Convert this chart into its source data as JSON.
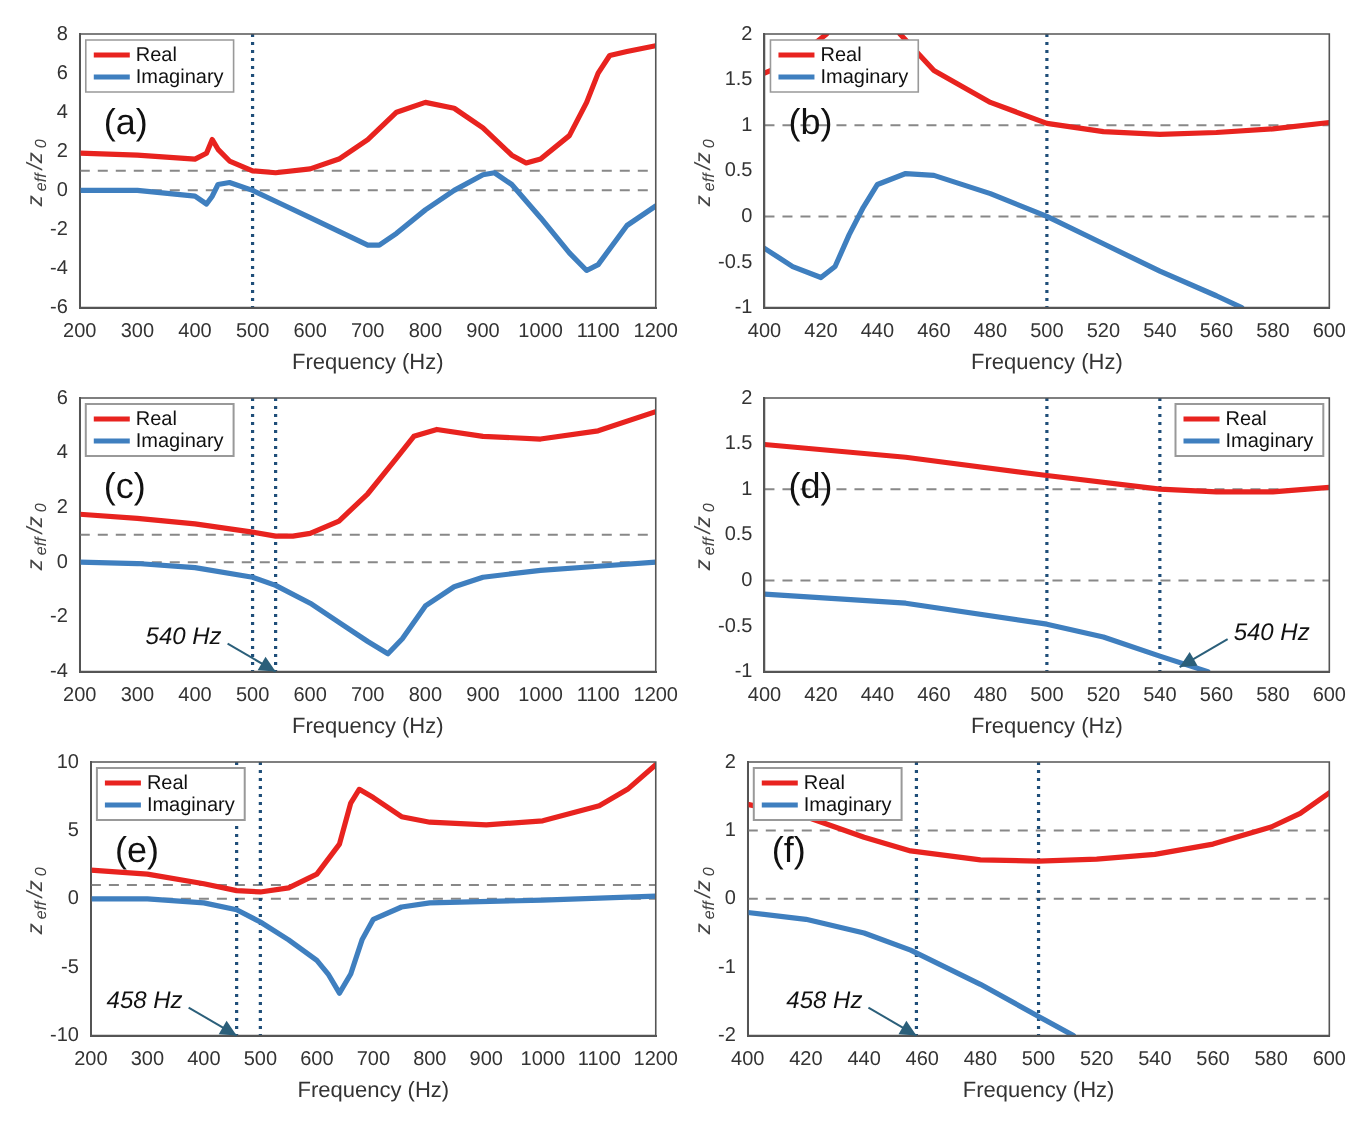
{
  "chart_data": [
    {
      "type": "line",
      "xlabel": "Frequency (Hz)",
      "ylabel": "z$_{eff}$/z$_{0}$",
      "xlim": [
        200,
        1200
      ],
      "xticks": [
        200,
        300,
        400,
        500,
        600,
        700,
        800,
        900,
        1000,
        1100,
        1200
      ],
      "ylim": [
        -6,
        8
      ],
      "yticks": [
        -6,
        -4,
        -2,
        0,
        2,
        4,
        6,
        8
      ],
      "legend": "top left",
      "line_style": "solid",
      "marker": "none",
      "series": [
        {
          "name": "Real",
          "color": "#e8231f",
          "x": [
            200,
            300,
            400,
            420,
            430,
            440,
            460,
            500,
            540,
            600,
            650,
            700,
            750,
            800,
            850,
            900,
            950,
            975,
            1000,
            1050,
            1080,
            1100,
            1120,
            1150,
            1200
          ],
          "values": [
            1.9,
            1.8,
            1.6,
            1.9,
            2.6,
            2.1,
            1.5,
            1.0,
            0.9,
            1.1,
            1.6,
            2.6,
            4.0,
            4.5,
            4.2,
            3.2,
            1.8,
            1.4,
            1.6,
            2.8,
            4.5,
            6.0,
            6.9,
            7.1,
            7.4
          ]
        },
        {
          "name": "Imaginary",
          "color": "#3f7fbf",
          "x": [
            200,
            300,
            400,
            420,
            430,
            440,
            460,
            500,
            550,
            600,
            650,
            700,
            720,
            750,
            800,
            850,
            900,
            920,
            950,
            1000,
            1050,
            1080,
            1100,
            1150,
            1200
          ],
          "values": [
            0,
            0,
            -0.3,
            -0.7,
            -0.3,
            0.3,
            0.4,
            0,
            -0.7,
            -1.4,
            -2.1,
            -2.8,
            -2.8,
            -2.2,
            -1.0,
            0,
            0.8,
            0.9,
            0.3,
            -1.4,
            -3.2,
            -4.1,
            -3.8,
            -1.8,
            -0.8
          ]
        }
      ],
      "ref_lines": [
        {
          "axis": "y",
          "value": 1,
          "color": "#888888",
          "line_style": "dashed"
        },
        {
          "axis": "y",
          "value": 0,
          "color": "#888888",
          "line_style": "dashed"
        },
        {
          "axis": "x",
          "value": 500,
          "color": "#1f4e79",
          "line_style": "dotted"
        }
      ],
      "annotations": [
        "(a)"
      ]
    },
    {
      "type": "line",
      "xlabel": "Frequency (Hz)",
      "ylabel": "z$_{eff}$/z$_{0}$",
      "xlim": [
        400,
        600
      ],
      "xticks": [
        400,
        420,
        440,
        460,
        480,
        500,
        520,
        540,
        560,
        580,
        600
      ],
      "ylim": [
        -1,
        2
      ],
      "yticks": [
        -1,
        -0.5,
        0,
        0.5,
        1,
        1.5,
        2
      ],
      "legend": "top left",
      "line_style": "solid",
      "marker": "none",
      "series": [
        {
          "name": "Real",
          "color": "#e8231f",
          "x": [
            400,
            410,
            420,
            422,
            435,
            448,
            460,
            480,
            500,
            520,
            540,
            560,
            580,
            600
          ],
          "values": [
            1.57,
            1.7,
            1.95,
            2.0,
            null,
            2.0,
            1.6,
            1.25,
            1.02,
            0.93,
            0.9,
            0.92,
            0.96,
            1.03
          ]
        },
        {
          "name": "Imaginary",
          "color": "#3f7fbf",
          "x": [
            400,
            410,
            420,
            425,
            430,
            435,
            440,
            450,
            460,
            480,
            500,
            520,
            540,
            560,
            569
          ],
          "values": [
            -0.35,
            -0.55,
            -0.67,
            -0.55,
            -0.2,
            0.1,
            0.35,
            0.47,
            0.45,
            0.25,
            0,
            -0.3,
            -0.6,
            -0.87,
            -1.0
          ]
        }
      ],
      "ref_lines": [
        {
          "axis": "y",
          "value": 1,
          "color": "#888888",
          "line_style": "dashed"
        },
        {
          "axis": "y",
          "value": 0,
          "color": "#888888",
          "line_style": "dashed"
        },
        {
          "axis": "x",
          "value": 500,
          "color": "#1f4e79",
          "line_style": "dotted"
        }
      ],
      "annotations": [
        "(b)"
      ]
    },
    {
      "type": "line",
      "xlabel": "Frequency (Hz)",
      "ylabel": "z$_{eff}$/z$_{0}$",
      "xlim": [
        200,
        1200
      ],
      "xticks": [
        200,
        300,
        400,
        500,
        600,
        700,
        800,
        900,
        1000,
        1100,
        1200
      ],
      "ylim": [
        -4,
        6
      ],
      "yticks": [
        -4,
        -2,
        0,
        2,
        4,
        6
      ],
      "legend": "top left",
      "line_style": "solid",
      "marker": "none",
      "series": [
        {
          "name": "Real",
          "color": "#e8231f",
          "x": [
            200,
            300,
            400,
            500,
            540,
            570,
            600,
            650,
            700,
            750,
            780,
            820,
            900,
            1000,
            1100,
            1200
          ],
          "values": [
            1.75,
            1.6,
            1.4,
            1.1,
            0.95,
            0.95,
            1.05,
            1.5,
            2.5,
            3.8,
            4.6,
            4.85,
            4.6,
            4.5,
            4.8,
            5.5
          ]
        },
        {
          "name": "Imaginary",
          "color": "#3f7fbf",
          "x": [
            200,
            300,
            400,
            500,
            540,
            600,
            650,
            700,
            735,
            760,
            800,
            850,
            900,
            1000,
            1100,
            1200
          ],
          "values": [
            0,
            -0.05,
            -0.2,
            -0.55,
            -0.85,
            -1.5,
            -2.2,
            -2.9,
            -3.35,
            -2.8,
            -1.6,
            -0.9,
            -0.55,
            -0.3,
            -0.15,
            0
          ]
        }
      ],
      "ref_lines": [
        {
          "axis": "y",
          "value": 1,
          "color": "#888888",
          "line_style": "dashed"
        },
        {
          "axis": "y",
          "value": 0,
          "color": "#888888",
          "line_style": "dashed"
        },
        {
          "axis": "x",
          "value": 500,
          "color": "#1f4e79",
          "line_style": "dotted"
        },
        {
          "axis": "x",
          "value": 540,
          "color": "#1f4e79",
          "line_style": "dotted"
        }
      ],
      "annotations": [
        "(c)",
        {
          "text": "540 Hz",
          "x": 540,
          "y": -4
        }
      ]
    },
    {
      "type": "line",
      "xlabel": "Frequency (Hz)",
      "ylabel": "z$_{eff}$/z$_{0}$",
      "xlim": [
        400,
        600
      ],
      "xticks": [
        400,
        420,
        440,
        460,
        480,
        500,
        520,
        540,
        560,
        580,
        600
      ],
      "ylim": [
        -1,
        2
      ],
      "yticks": [
        -1,
        -0.5,
        0,
        0.5,
        1,
        1.5,
        2
      ],
      "legend": "top right",
      "line_style": "solid",
      "marker": "none",
      "series": [
        {
          "name": "Real",
          "color": "#e8231f",
          "x": [
            400,
            450,
            500,
            540,
            560,
            580,
            600
          ],
          "values": [
            1.49,
            1.35,
            1.15,
            1.0,
            0.97,
            0.97,
            1.02
          ]
        },
        {
          "name": "Imaginary",
          "color": "#3f7fbf",
          "x": [
            400,
            450,
            500,
            520,
            540,
            557
          ],
          "values": [
            -0.15,
            -0.25,
            -0.48,
            -0.62,
            -0.83,
            -1.0
          ]
        }
      ],
      "ref_lines": [
        {
          "axis": "y",
          "value": 1,
          "color": "#888888",
          "line_style": "dashed"
        },
        {
          "axis": "y",
          "value": 0,
          "color": "#888888",
          "line_style": "dashed"
        },
        {
          "axis": "x",
          "value": 500,
          "color": "#1f4e79",
          "line_style": "dotted"
        },
        {
          "axis": "x",
          "value": 540,
          "color": "#1f4e79",
          "line_style": "dotted"
        }
      ],
      "annotations": [
        "(d)",
        {
          "text": "540 Hz",
          "x": 547,
          "y": -0.95
        }
      ]
    },
    {
      "type": "line",
      "xlabel": "Frequency (Hz)",
      "ylabel": "z$_{eff}$/z$_{0}$",
      "xlim": [
        200,
        1200
      ],
      "xticks": [
        200,
        300,
        400,
        500,
        600,
        700,
        800,
        900,
        1000,
        1100,
        1200
      ],
      "ylim": [
        -10,
        10
      ],
      "yticks": [
        -10,
        -5,
        0,
        5,
        10
      ],
      "legend": "top left",
      "line_style": "solid",
      "marker": "none",
      "series": [
        {
          "name": "Real",
          "color": "#e8231f",
          "x": [
            200,
            300,
            400,
            458,
            500,
            550,
            600,
            640,
            660,
            675,
            700,
            750,
            800,
            900,
            1000,
            1100,
            1150,
            1200
          ],
          "values": [
            2.1,
            1.8,
            1.1,
            0.6,
            0.5,
            0.8,
            1.8,
            4.0,
            7.0,
            8.0,
            7.4,
            6.0,
            5.6,
            5.4,
            5.7,
            6.8,
            8.0,
            9.8
          ]
        },
        {
          "name": "Imaginary",
          "color": "#3f7fbf",
          "x": [
            200,
            300,
            400,
            458,
            500,
            550,
            600,
            620,
            640,
            660,
            680,
            700,
            750,
            800,
            1000,
            1200
          ],
          "values": [
            0,
            0,
            -0.3,
            -0.8,
            -1.7,
            -3.0,
            -4.5,
            -5.5,
            -6.9,
            -5.5,
            -3.0,
            -1.5,
            -0.6,
            -0.3,
            -0.1,
            0.2
          ]
        }
      ],
      "ref_lines": [
        {
          "axis": "y",
          "value": 1,
          "color": "#888888",
          "line_style": "dashed"
        },
        {
          "axis": "y",
          "value": 0,
          "color": "#888888",
          "line_style": "dashed"
        },
        {
          "axis": "x",
          "value": 458,
          "color": "#1f4e79",
          "line_style": "dotted"
        },
        {
          "axis": "x",
          "value": 500,
          "color": "#1f4e79",
          "line_style": "dotted"
        }
      ],
      "annotations": [
        "(e)",
        {
          "text": "458 Hz",
          "x": 458,
          "y": -10
        }
      ]
    },
    {
      "type": "line",
      "xlabel": "Frequency (Hz)",
      "ylabel": "z$_{eff}$/z$_{0}$",
      "xlim": [
        400,
        600
      ],
      "xticks": [
        400,
        420,
        440,
        460,
        480,
        500,
        520,
        540,
        560,
        580,
        600
      ],
      "ylim": [
        -2,
        2
      ],
      "yticks": [
        -2,
        -1,
        0,
        1,
        2
      ],
      "legend": "top left",
      "line_style": "solid",
      "marker": "none",
      "series": [
        {
          "name": "Real",
          "color": "#e8231f",
          "x": [
            400,
            420,
            440,
            456,
            480,
            500,
            520,
            540,
            560,
            580,
            590,
            600
          ],
          "values": [
            1.38,
            1.2,
            0.9,
            0.7,
            0.57,
            0.55,
            0.58,
            0.65,
            0.8,
            1.05,
            1.25,
            1.55
          ]
        },
        {
          "name": "Imaginary",
          "color": "#3f7fbf",
          "x": [
            400,
            420,
            440,
            456,
            480,
            500,
            512
          ],
          "values": [
            -0.2,
            -0.3,
            -0.5,
            -0.75,
            -1.25,
            -1.72,
            -2.0
          ]
        }
      ],
      "ref_lines": [
        {
          "axis": "y",
          "value": 1,
          "color": "#888888",
          "line_style": "dashed"
        },
        {
          "axis": "y",
          "value": 0,
          "color": "#888888",
          "line_style": "dashed"
        },
        {
          "axis": "x",
          "value": 458,
          "color": "#1f4e79",
          "line_style": "dotted"
        },
        {
          "axis": "x",
          "value": 500,
          "color": "#1f4e79",
          "line_style": "dotted"
        }
      ],
      "annotations": [
        "(f)",
        {
          "text": "458 Hz",
          "x": 458,
          "y": -2
        }
      ]
    }
  ]
}
